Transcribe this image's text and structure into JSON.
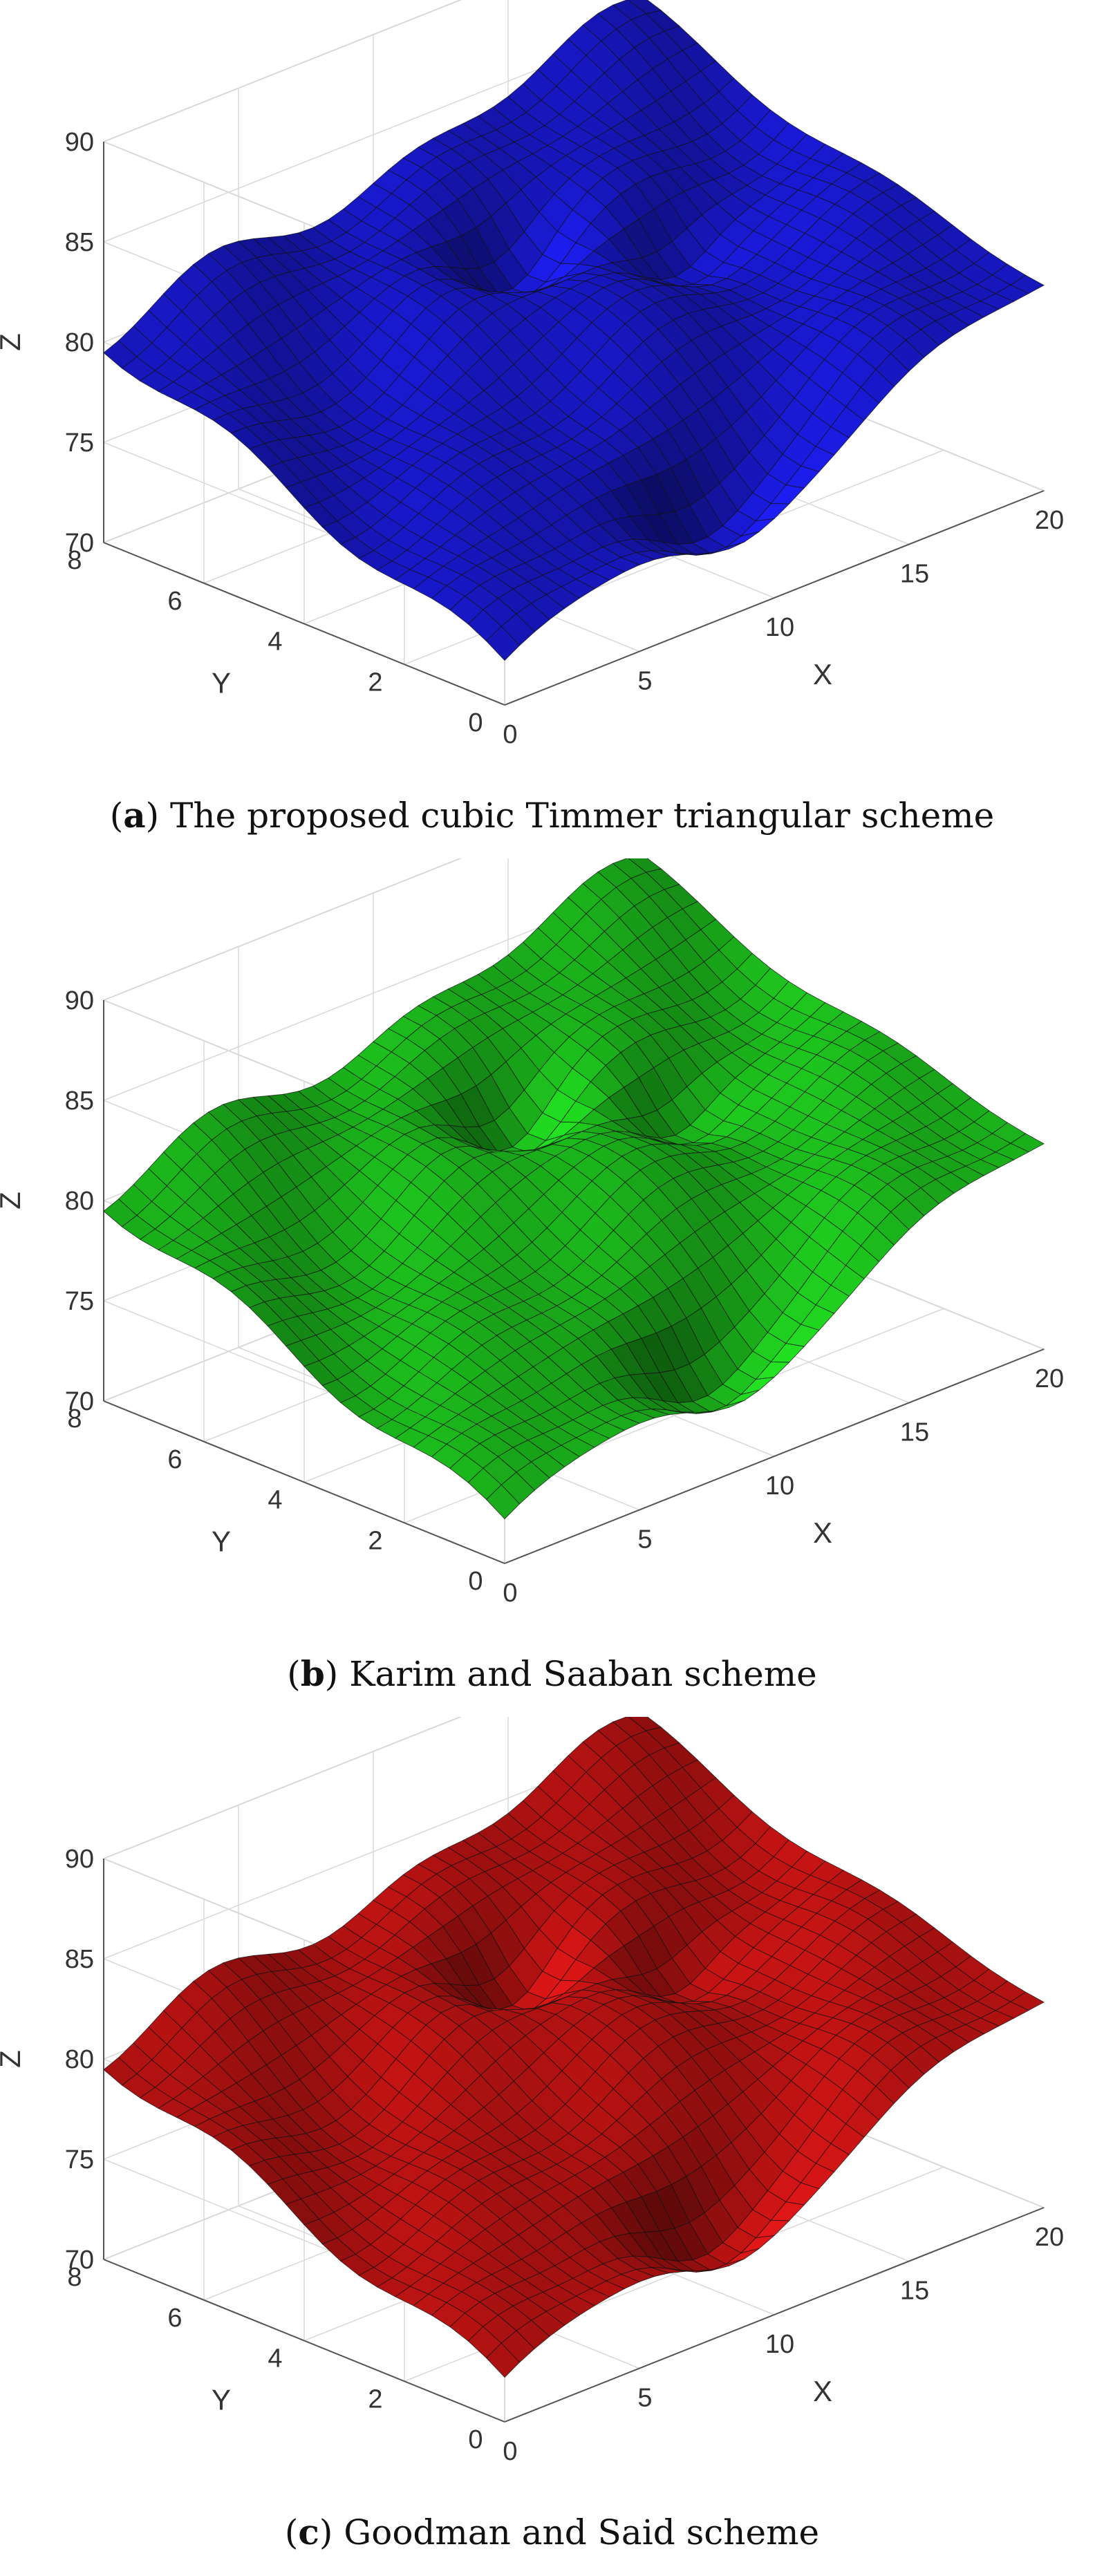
{
  "chart_data": [
    {
      "type": "surface",
      "caption": {
        "letter": "a",
        "text": "The proposed cubic Timmer triangular scheme"
      },
      "color": "#1a1ad8",
      "xlabel": "X",
      "ylabel": "Y",
      "zlabel": "Z",
      "xlim": [
        0,
        20
      ],
      "ylim": [
        0,
        8
      ],
      "zlim": [
        70,
        90
      ],
      "xticks": [
        "0",
        "5",
        "10",
        "15",
        "20"
      ],
      "yticks": [
        "0",
        "2",
        "4",
        "6",
        "8"
      ],
      "zticks": [
        "70",
        "75",
        "80",
        "85",
        "90"
      ],
      "grid": true,
      "corners_z": {
        "x0_y0": 72,
        "x20_y0": 80,
        "x0_y8": 80,
        "x20_y8": 86
      }
    },
    {
      "type": "surface",
      "caption": {
        "letter": "b",
        "text": "Karim and Saaban scheme"
      },
      "color": "#1ec81e",
      "xlabel": "X",
      "ylabel": "Y",
      "zlabel": "Z",
      "xlim": [
        0,
        20
      ],
      "ylim": [
        0,
        8
      ],
      "zlim": [
        70,
        90
      ],
      "xticks": [
        "0",
        "5",
        "10",
        "15",
        "20"
      ],
      "yticks": [
        "0",
        "2",
        "4",
        "6",
        "8"
      ],
      "zticks": [
        "70",
        "75",
        "80",
        "85",
        "90"
      ],
      "grid": true,
      "corners_z": {
        "x0_y0": 72,
        "x20_y0": 80,
        "x0_y8": 80,
        "x20_y8": 86
      }
    },
    {
      "type": "surface",
      "caption": {
        "letter": "c",
        "text": "Goodman and Said scheme"
      },
      "color": "#c81414",
      "xlabel": "X",
      "ylabel": "Y",
      "zlabel": "Z",
      "xlim": [
        0,
        20
      ],
      "ylim": [
        0,
        8
      ],
      "zlim": [
        70,
        90
      ],
      "xticks": [
        "0",
        "5",
        "10",
        "15",
        "20"
      ],
      "yticks": [
        "0",
        "2",
        "4",
        "6",
        "8"
      ],
      "zticks": [
        "70",
        "75",
        "80",
        "85",
        "90"
      ],
      "grid": true,
      "corners_z": {
        "x0_y0": 72,
        "x20_y0": 80,
        "x0_y8": 80,
        "x20_y8": 86
      }
    }
  ]
}
